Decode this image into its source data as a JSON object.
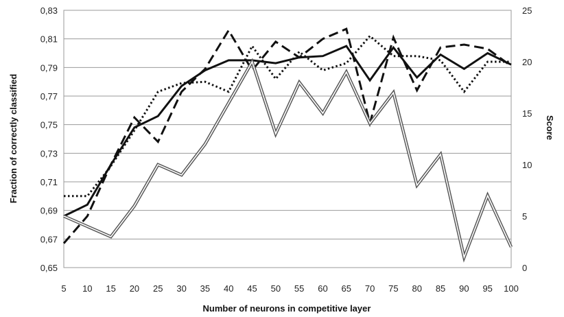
{
  "chart_data": {
    "type": "line",
    "x": [
      5,
      10,
      15,
      20,
      25,
      30,
      35,
      40,
      45,
      50,
      55,
      60,
      65,
      70,
      75,
      80,
      85,
      90,
      95,
      100
    ],
    "xlabel": "Number of neurons in competitive layer",
    "ylabel_left": "Fraction of correctly classified",
    "ylabel_right": "Score",
    "ylim_left": [
      0.65,
      0.83
    ],
    "ylim_right": [
      0,
      25
    ],
    "yticks_left": [
      "0,65",
      "0,67",
      "0,69",
      "0,71",
      "0,73",
      "0,75",
      "0,77",
      "0,79",
      "0,81",
      "0,83"
    ],
    "yticks_right": [
      "0",
      "5",
      "10",
      "15",
      "20",
      "25"
    ],
    "grid": true,
    "legend": "none",
    "series": [
      {
        "style": "solid",
        "axis": "left",
        "values": [
          0.686,
          0.694,
          0.722,
          0.748,
          0.756,
          0.777,
          0.788,
          0.795,
          0.795,
          0.793,
          0.797,
          0.798,
          0.805,
          0.781,
          0.804,
          0.783,
          0.799,
          0.789,
          0.8,
          0.792
        ]
      },
      {
        "style": "dashed",
        "axis": "left",
        "values": [
          0.667,
          0.686,
          0.722,
          0.755,
          0.738,
          0.773,
          0.789,
          0.816,
          0.788,
          0.808,
          0.797,
          0.81,
          0.817,
          0.751,
          0.811,
          0.774,
          0.804,
          0.806,
          0.803,
          0.791
        ]
      },
      {
        "style": "dotted",
        "axis": "left",
        "values": [
          0.7,
          0.7,
          0.721,
          0.746,
          0.773,
          0.779,
          0.78,
          0.773,
          0.805,
          0.782,
          0.801,
          0.788,
          0.793,
          0.812,
          0.798,
          0.798,
          0.795,
          0.773,
          0.794,
          0.794
        ]
      },
      {
        "style": "double",
        "axis": "right",
        "values": [
          5,
          4,
          3,
          6,
          10,
          9,
          12,
          16,
          20,
          13,
          18,
          15,
          19,
          14,
          17,
          8,
          11,
          1,
          7,
          2
        ]
      }
    ]
  }
}
